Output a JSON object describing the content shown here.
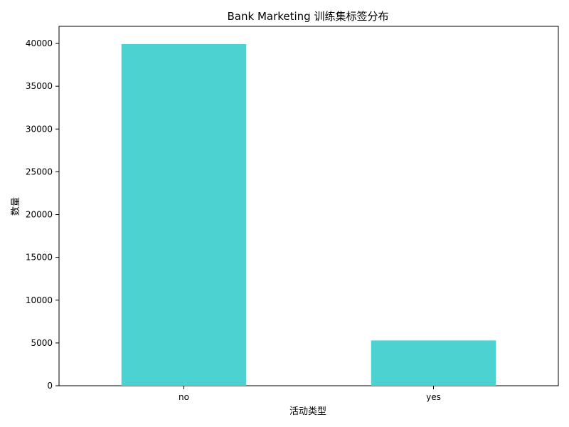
{
  "chart_data": {
    "type": "bar",
    "title": "Bank Marketing 训练集标签分布",
    "xlabel": "活动类型",
    "ylabel": "数量",
    "categories": [
      "no",
      "yes"
    ],
    "values": [
      39922,
      5289
    ],
    "ylim": [
      0,
      42000
    ],
    "yticks": [
      0,
      5000,
      10000,
      15000,
      20000,
      25000,
      30000,
      35000,
      40000
    ],
    "bar_color": "#4dd2d2",
    "grid": false,
    "legend": "none"
  }
}
